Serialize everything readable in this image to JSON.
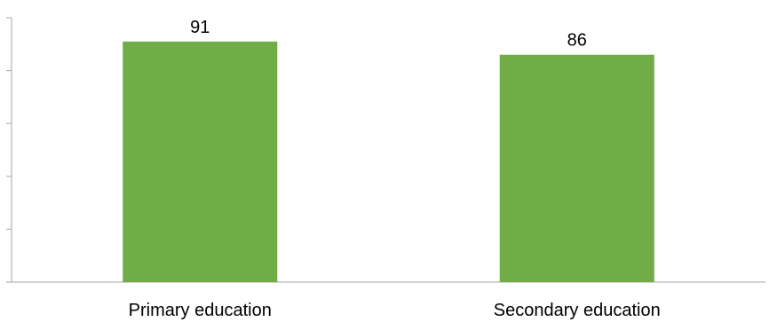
{
  "chart_data": {
    "type": "bar",
    "categories": [
      "Primary education",
      "Secondary education"
    ],
    "values": [
      91,
      86
    ],
    "data_labels": [
      "91",
      "86"
    ],
    "title": "",
    "xlabel": "",
    "ylabel": "",
    "ylim": [
      0,
      100
    ],
    "y_ticks_labeled": false,
    "grid": false,
    "legend": "none",
    "bar_color": "#70ad47"
  }
}
